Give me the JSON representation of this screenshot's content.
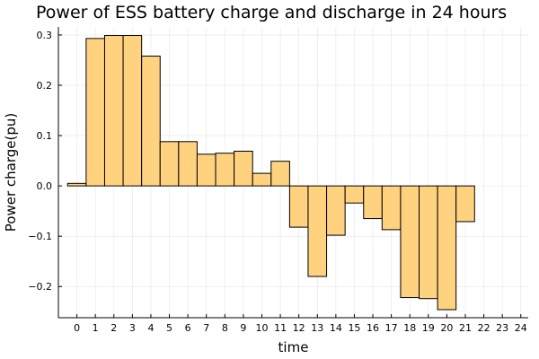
{
  "chart_data": {
    "type": "bar",
    "title": "Power of ESS battery charge and discharge in 24 hours",
    "xlabel": "time",
    "ylabel": "Power charge(pu)",
    "x": [
      0,
      1,
      2,
      3,
      4,
      5,
      6,
      7,
      8,
      9,
      10,
      11,
      12,
      13,
      14,
      15,
      16,
      17,
      18,
      19,
      20,
      21,
      22,
      23
    ],
    "values": [
      0.005,
      0.293,
      0.299,
      0.299,
      0.258,
      0.088,
      0.088,
      0.063,
      0.065,
      0.069,
      0.025,
      0.049,
      -0.082,
      -0.18,
      -0.098,
      -0.034,
      -0.065,
      -0.087,
      -0.222,
      -0.224,
      -0.246,
      -0.071,
      0.0,
      0.0
    ],
    "x_ticks": [
      "0",
      "1",
      "2",
      "3",
      "4",
      "5",
      "6",
      "7",
      "8",
      "9",
      "10",
      "11",
      "12",
      "13",
      "14",
      "15",
      "16",
      "17",
      "18",
      "19",
      "20",
      "21",
      "22",
      "23",
      "24"
    ],
    "y_ticks": [
      -0.2,
      -0.1,
      0.0,
      0.1,
      0.2,
      0.3
    ],
    "y_tick_labels": [
      "−0.2",
      "−0.1",
      "0.0",
      "0.1",
      "0.2",
      "0.3"
    ],
    "xlim": [
      -1.0,
      24.4
    ],
    "ylim": [
      -0.262,
      0.316
    ],
    "grid": true,
    "legend": "none",
    "colors": {
      "bar_fill": "#ffd27f",
      "bar_stroke": "#000000",
      "axis": "#000000",
      "background": "#ffffff"
    }
  }
}
